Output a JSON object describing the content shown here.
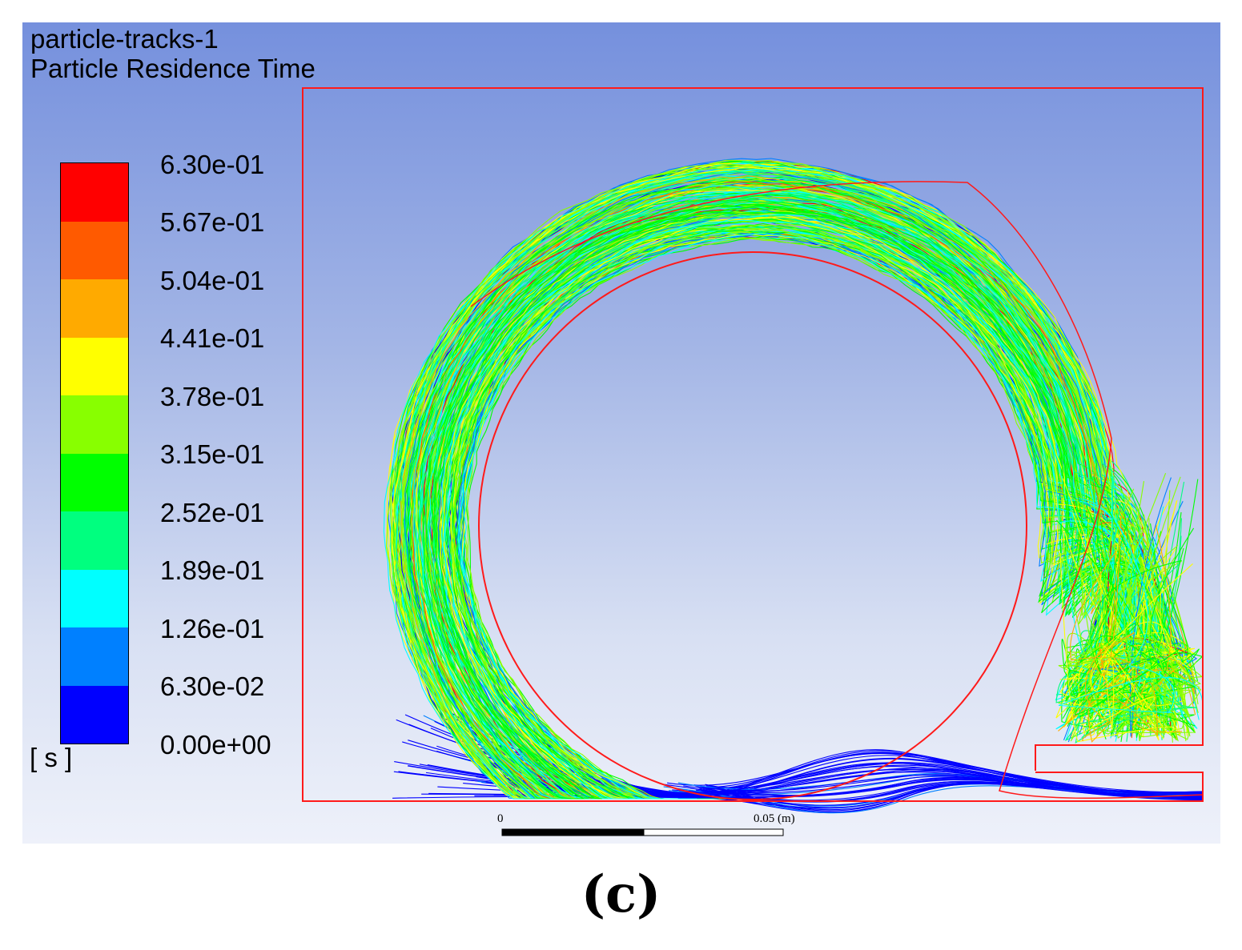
{
  "title_line1": "particle-tracks-1",
  "title_line2": "Particle Residence Time",
  "legend": {
    "unit": "[ s ]",
    "labels": [
      "6.30e-01",
      "5.67e-01",
      "5.04e-01",
      "4.41e-01",
      "3.78e-01",
      "3.15e-01",
      "2.52e-01",
      "1.89e-01",
      "1.26e-01",
      "6.30e-02",
      "0.00e+00"
    ],
    "colors": [
      "#ff0000",
      "#ff5a00",
      "#ffaa00",
      "#ffff00",
      "#88ff00",
      "#00ff00",
      "#00ff7f",
      "#00ffff",
      "#0080ff",
      "#0000ff"
    ]
  },
  "scale_bar": {
    "label_start": "0",
    "label_end": "0.05 (m)"
  },
  "colors": {
    "geometry": "#ff1a1a",
    "background_top": "#7590dd",
    "background_bottom": "#eef1fa"
  },
  "caption": "(c)"
}
